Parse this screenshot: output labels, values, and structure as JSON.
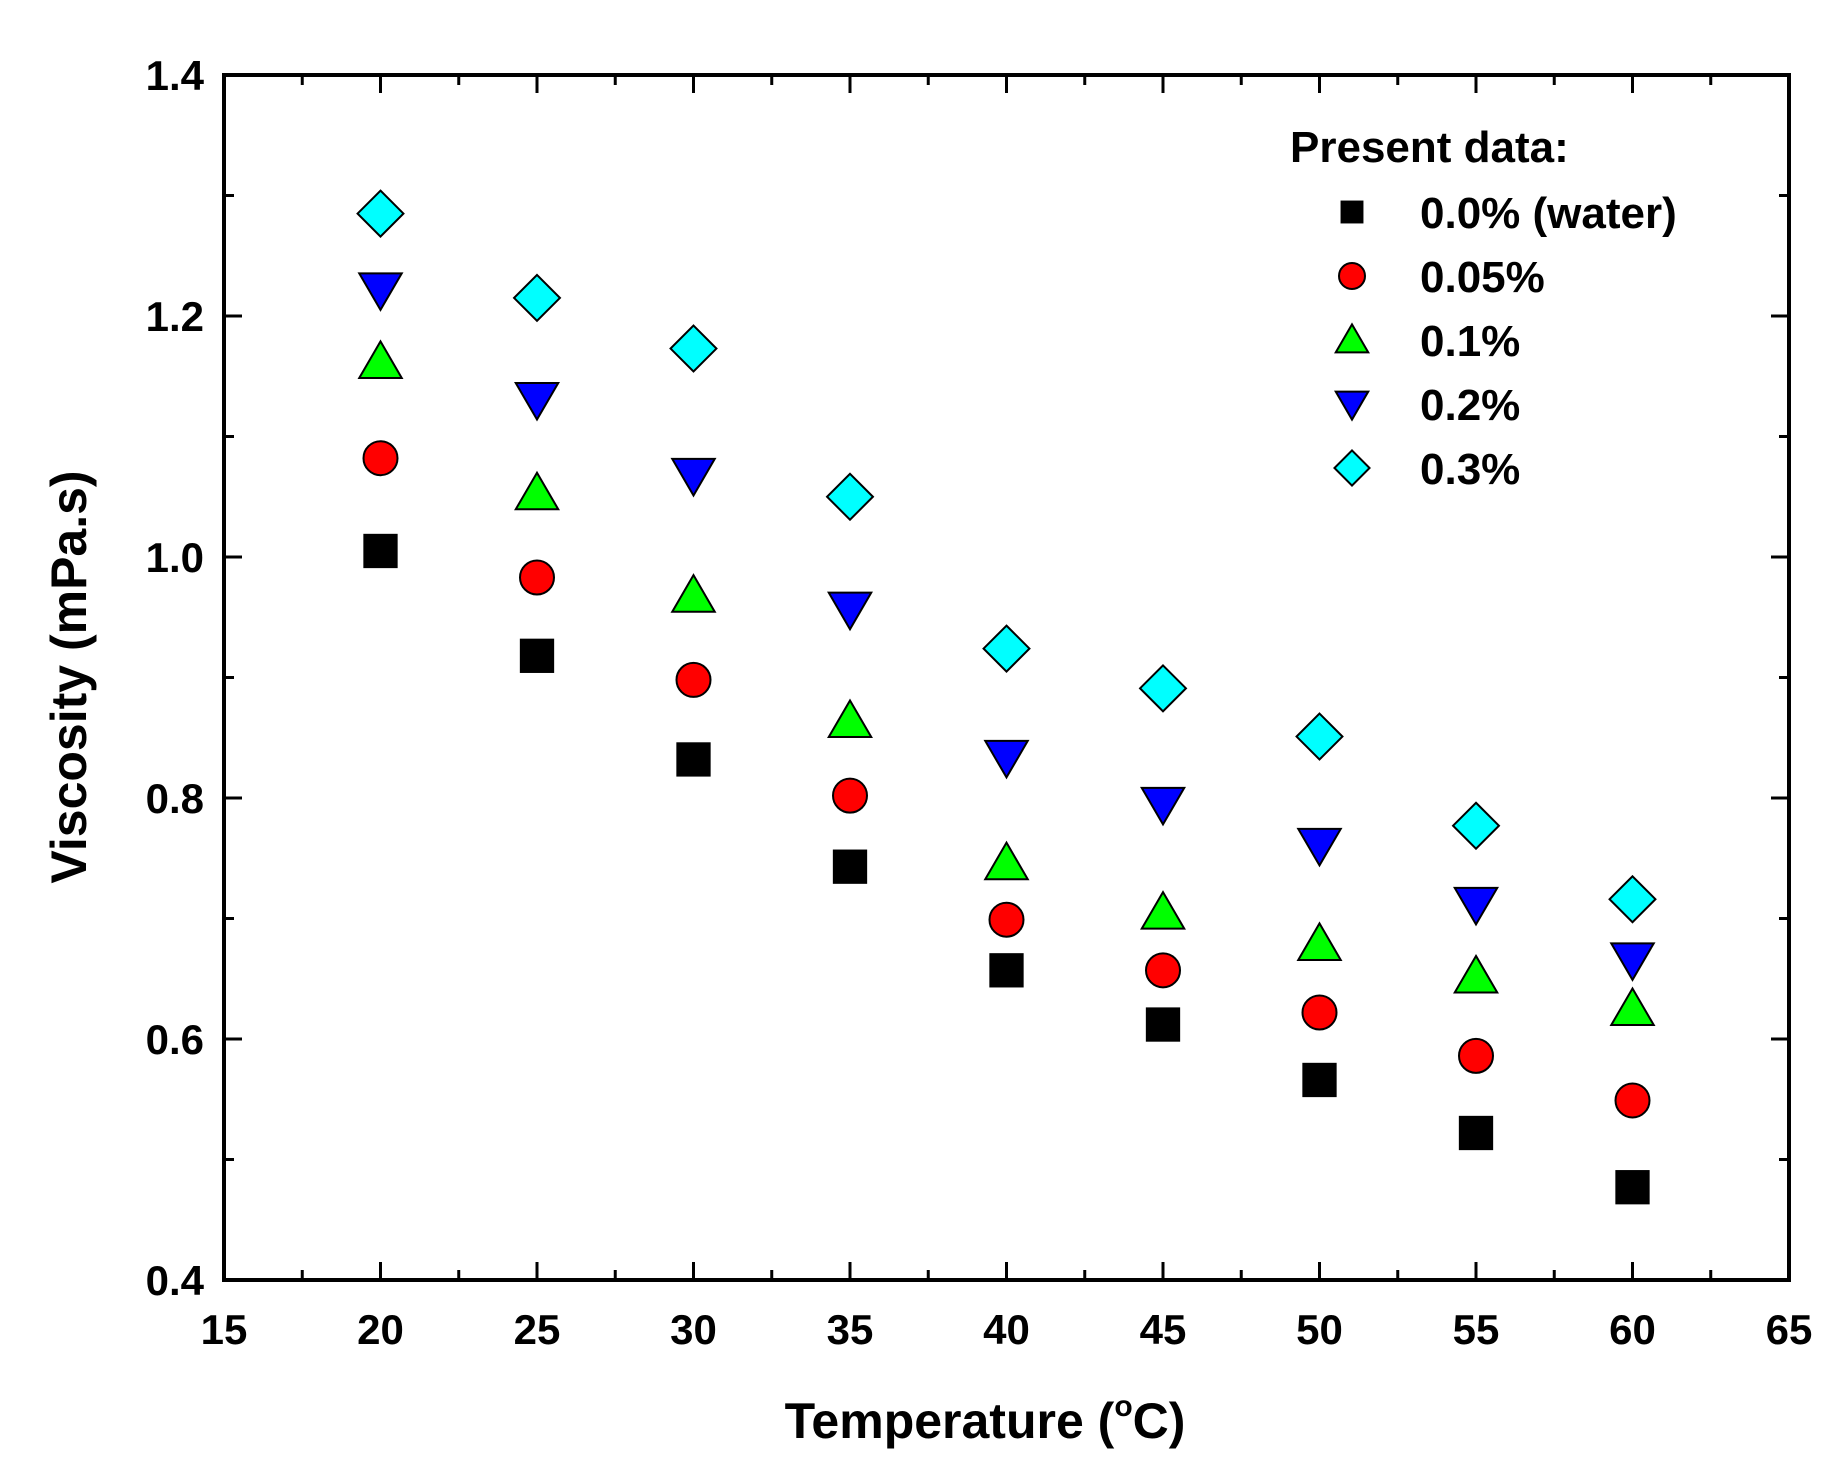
{
  "chart_data": {
    "type": "scatter",
    "title": "",
    "xlabel": "Temperature (",
    "xlabel_degree": "o",
    "xlabel_unit": "C)",
    "ylabel": "Viscosity (mPa.s)",
    "xlim": [
      15,
      65
    ],
    "ylim": [
      0.4,
      1.4
    ],
    "xticks": [
      15,
      20,
      25,
      30,
      35,
      40,
      45,
      50,
      55,
      60,
      65
    ],
    "xtick_labels": [
      "15",
      "20",
      "25",
      "30",
      "35",
      "40",
      "45",
      "50",
      "55",
      "60",
      "65"
    ],
    "yticks": [
      0.4,
      0.6,
      0.8,
      1.0,
      1.2,
      1.4
    ],
    "ytick_labels": [
      "0.4",
      "0.6",
      "0.8",
      "1.0",
      "1.2",
      "1.4"
    ],
    "grid": false,
    "legend_title": "Present data:",
    "legend_position": "top-right",
    "x": [
      20,
      25,
      30,
      35,
      40,
      45,
      50,
      55,
      60
    ],
    "series": [
      {
        "name": "0.0% (water)",
        "marker": "square",
        "color": "#000000",
        "values": [
          1.005,
          0.918,
          0.832,
          0.743,
          0.657,
          0.612,
          0.566,
          0.522,
          0.477
        ]
      },
      {
        "name": "0.05%",
        "marker": "circle",
        "color": "#ff0000",
        "values": [
          1.082,
          0.983,
          0.898,
          0.802,
          0.699,
          0.657,
          0.622,
          0.586,
          0.549
        ]
      },
      {
        "name": "0.1%",
        "marker": "triangle-up",
        "color": "#00ff00",
        "values": [
          1.162,
          1.053,
          0.968,
          0.864,
          0.746,
          0.705,
          0.679,
          0.652,
          0.625
        ]
      },
      {
        "name": "0.2%",
        "marker": "triangle-down",
        "color": "#0000ff",
        "values": [
          1.222,
          1.131,
          1.068,
          0.957,
          0.834,
          0.795,
          0.761,
          0.712,
          0.666
        ]
      },
      {
        "name": "0.3%",
        "marker": "diamond",
        "color": "#00ffff",
        "values": [
          1.285,
          1.215,
          1.173,
          1.05,
          0.924,
          0.891,
          0.851,
          0.777,
          0.716
        ]
      }
    ]
  }
}
